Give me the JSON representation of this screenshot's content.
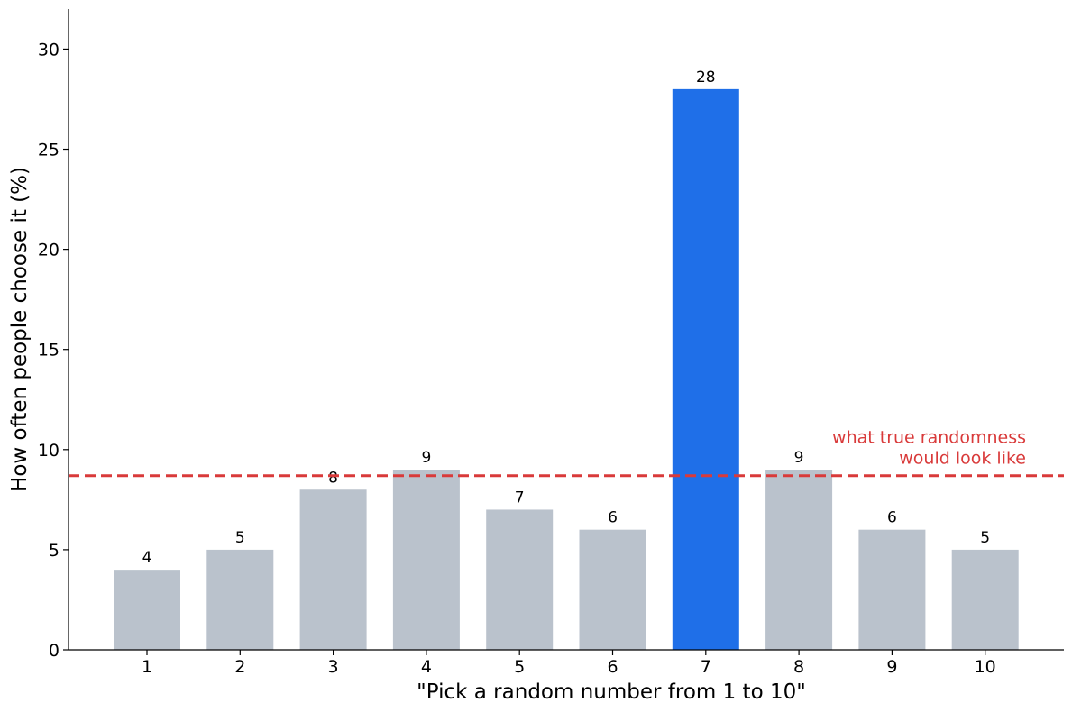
{
  "chart_data": {
    "type": "bar",
    "categories": [
      "1",
      "2",
      "3",
      "4",
      "5",
      "6",
      "7",
      "8",
      "9",
      "10"
    ],
    "values": [
      4,
      5,
      8,
      9,
      7,
      6,
      28,
      9,
      6,
      5
    ],
    "data_labels": [
      "4",
      "5",
      "8",
      "9",
      "7",
      "6",
      "28",
      "9",
      "6",
      "5"
    ],
    "highlight_category": "7",
    "xlabel": "\"Pick a random number from 1 to 10\"",
    "ylabel": "How often people choose it (%)",
    "ylim": [
      0,
      32
    ],
    "yticks": [
      0,
      5,
      10,
      15,
      20,
      25,
      30
    ],
    "ytick_labels": [
      "0",
      "5",
      "10",
      "15",
      "20",
      "25",
      "30"
    ],
    "grid": false,
    "reference_line": {
      "value": 8.7,
      "style": "dashed",
      "label_line1": "what true randomness",
      "label_line2": "would look like"
    },
    "colors": {
      "bar": "#bac2cc",
      "highlight": "#1f6fe8",
      "reference": "#d93a3a",
      "axis": "#000000"
    }
  }
}
